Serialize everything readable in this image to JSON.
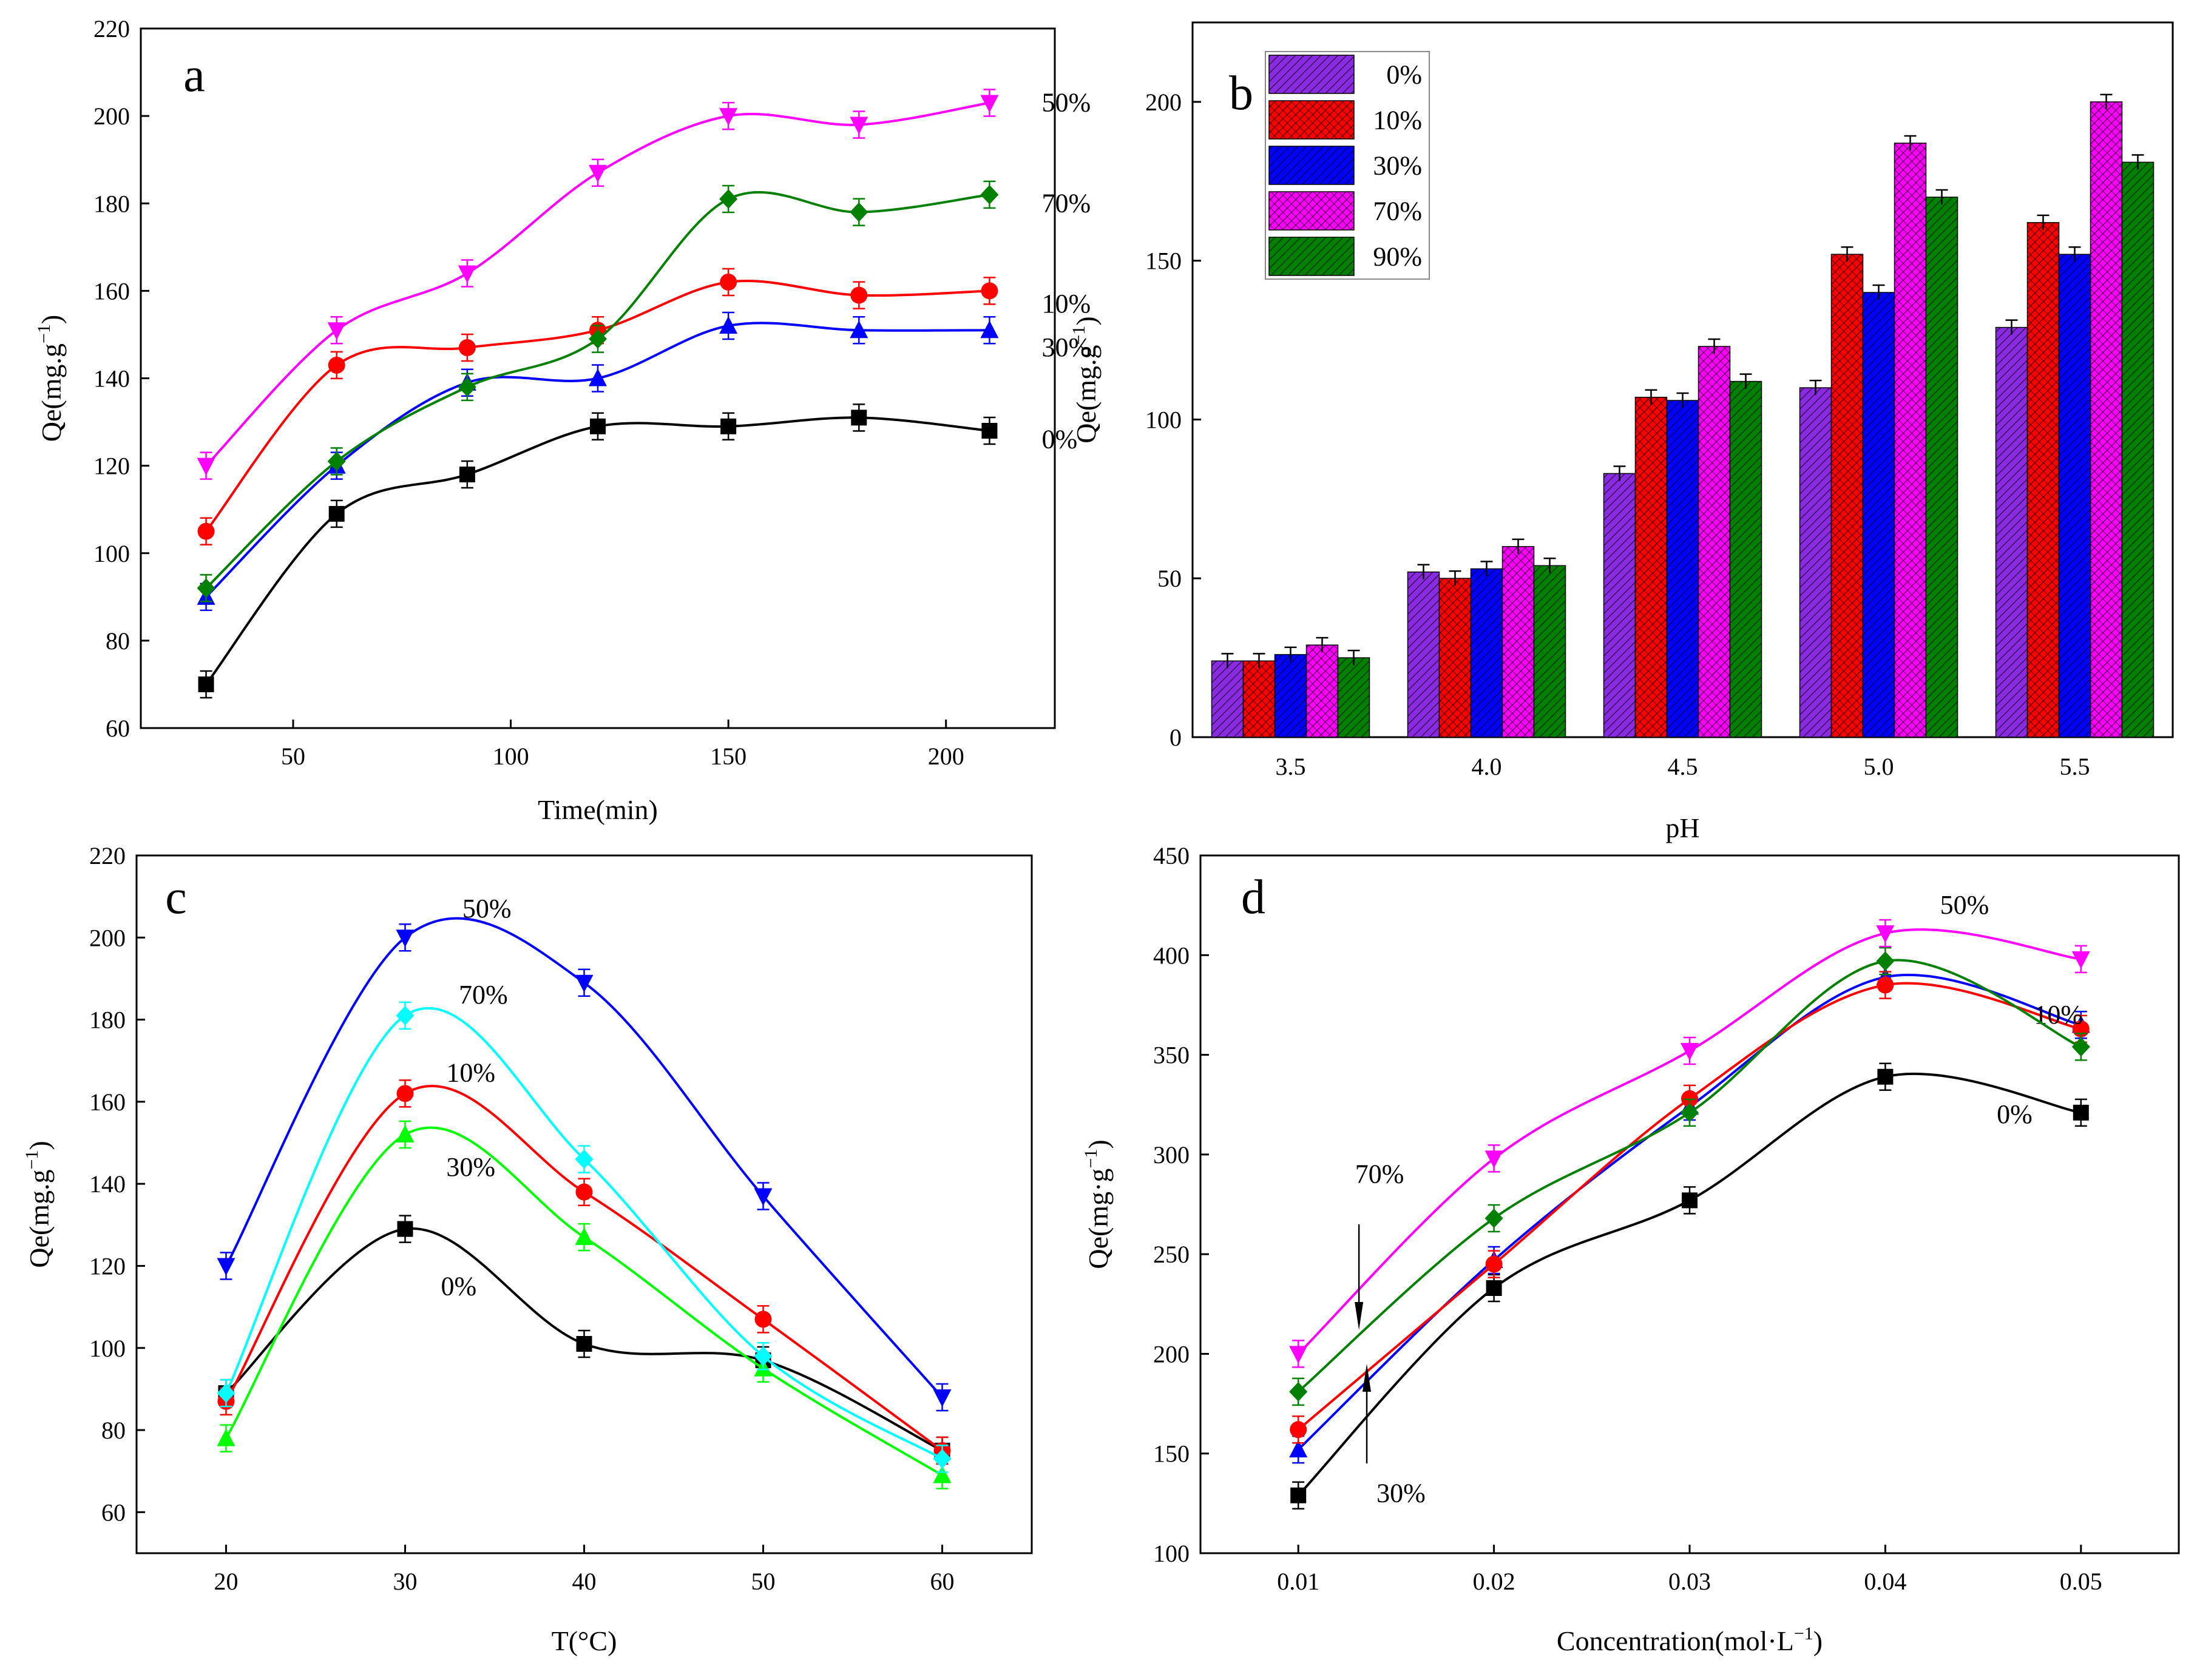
{
  "figure": {
    "description_free": true
  },
  "chart_data": [
    {
      "id": "a",
      "type": "line",
      "panel_label": "a",
      "xlabel": "Time(min)",
      "ylabel": "Qe(mg.g",
      "ylabel_sup": "−1",
      "ylabel_tail": ")",
      "xlim": [
        15,
        225
      ],
      "ylim": [
        60,
        220
      ],
      "xticks": [
        50,
        100,
        150,
        200
      ],
      "yticks": [
        60,
        80,
        100,
        120,
        140,
        160,
        180,
        200,
        220
      ],
      "x": [
        30,
        60,
        90,
        120,
        150,
        180,
        210
      ],
      "series": [
        {
          "name": "0%",
          "color": "#000000",
          "marker": "square",
          "values": [
            70,
            109,
            118,
            129,
            129,
            131,
            128
          ]
        },
        {
          "name": "30%",
          "color": "#0000ff",
          "marker": "triangle-up",
          "values": [
            90,
            120,
            139,
            140,
            152,
            151,
            151
          ]
        },
        {
          "name": "10%",
          "color": "#ff0000",
          "marker": "circle",
          "values": [
            105,
            143,
            147,
            151,
            162,
            159,
            160
          ]
        },
        {
          "name": "70%",
          "color": "#008000",
          "marker": "diamond",
          "values": [
            92,
            121,
            138,
            149,
            181,
            178,
            182
          ]
        },
        {
          "name": "50%",
          "color": "#ff00ff",
          "marker": "triangle-down",
          "values": [
            120,
            151,
            164,
            187,
            200,
            198,
            203
          ]
        }
      ]
    },
    {
      "id": "b",
      "type": "bar",
      "panel_label": "b",
      "xlabel": "pH",
      "ylabel": "Qe(mg.g",
      "ylabel_sup": "−1",
      "ylabel_tail": ")",
      "ylim": [
        0,
        225
      ],
      "yticks": [
        0,
        50,
        100,
        150,
        200
      ],
      "categories": [
        "3.5",
        "4.0",
        "4.5",
        "5.0",
        "5.5"
      ],
      "legend_position": "top-left",
      "series": [
        {
          "name": "0%",
          "color": "#8a2be2",
          "values": [
            24,
            52,
            83,
            110,
            129
          ]
        },
        {
          "name": "10%",
          "color": "#ff0000",
          "values": [
            24,
            50,
            107,
            152,
            162
          ]
        },
        {
          "name": "30%",
          "color": "#0000ff",
          "values": [
            26,
            53,
            106,
            140,
            152
          ]
        },
        {
          "name": "70%",
          "color": "#ff00ff",
          "values": [
            29,
            60,
            123,
            187,
            200
          ]
        },
        {
          "name": "90%",
          "color": "#008000",
          "values": [
            25,
            54,
            112,
            170,
            181
          ]
        }
      ]
    },
    {
      "id": "c",
      "type": "line",
      "panel_label": "c",
      "xlabel": "T(°C)",
      "ylabel": "Qe(mg.g",
      "ylabel_sup": "−1",
      "ylabel_tail": ")",
      "xlim": [
        15,
        65
      ],
      "ylim": [
        50,
        220
      ],
      "xticks": [
        20,
        30,
        40,
        50,
        60
      ],
      "yticks": [
        60,
        80,
        100,
        120,
        140,
        160,
        180,
        200,
        220
      ],
      "x": [
        20,
        30,
        40,
        50,
        60
      ],
      "series": [
        {
          "name": "0%",
          "color": "#000000",
          "marker": "square",
          "values": [
            89,
            129,
            101,
            97,
            75
          ]
        },
        {
          "name": "30%",
          "color": "#00ff00",
          "marker": "triangle-up",
          "values": [
            78,
            152,
            127,
            95,
            69
          ]
        },
        {
          "name": "10%",
          "color": "#ff0000",
          "marker": "circle",
          "values": [
            87,
            162,
            138,
            107,
            75
          ]
        },
        {
          "name": "70%",
          "color": "#00ffff",
          "marker": "diamond",
          "values": [
            89,
            181,
            146,
            98,
            73
          ]
        },
        {
          "name": "50%",
          "color": "#0000ff",
          "marker": "triangle-down",
          "values": [
            120,
            200,
            189,
            137,
            88
          ]
        }
      ]
    },
    {
      "id": "d",
      "type": "line",
      "panel_label": "d",
      "xlabel": "Concentration(mol·L",
      "xlabel_sup": "−1",
      "xlabel_tail": ")",
      "ylabel": "Qe(mg·g",
      "ylabel_sup": "−1",
      "ylabel_tail": ")",
      "xlim": [
        0.005,
        0.055
      ],
      "ylim": [
        100,
        450
      ],
      "xticks": [
        "0.01",
        "0.02",
        "0.03",
        "0.04",
        "0.05"
      ],
      "yticks": [
        100,
        150,
        200,
        250,
        300,
        350,
        400,
        450
      ],
      "x": [
        0.01,
        0.02,
        0.03,
        0.04,
        0.05
      ],
      "series": [
        {
          "name": "0%",
          "color": "#000000",
          "marker": "square",
          "values": [
            129,
            233,
            277,
            339,
            321
          ]
        },
        {
          "name": "30%",
          "color": "#0000ff",
          "marker": "triangle-up",
          "values": [
            152,
            247,
            324,
            389,
            365
          ]
        },
        {
          "name": "10%",
          "color": "#ff0000",
          "marker": "circle",
          "values": [
            162,
            245,
            328,
            385,
            363
          ]
        },
        {
          "name": "70%",
          "color": "#008000",
          "marker": "diamond",
          "values": [
            181,
            268,
            321,
            397,
            354
          ]
        },
        {
          "name": "50%",
          "color": "#ff00ff",
          "marker": "triangle-down",
          "values": [
            200,
            298,
            352,
            411,
            398
          ]
        }
      ]
    }
  ]
}
